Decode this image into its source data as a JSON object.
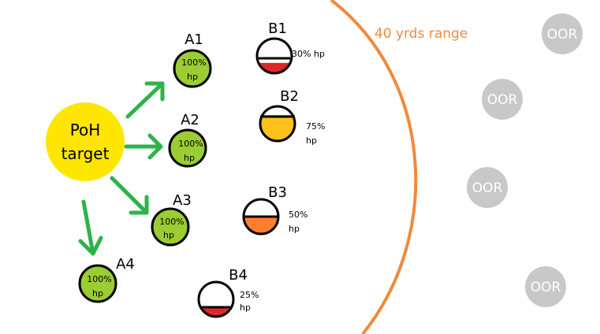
{
  "colors": {
    "green_fill": "#9acd32",
    "arrow": "#2db34a",
    "target": "#ffe600",
    "range": "#f08a3c",
    "oor": "#c8c8c8",
    "red": "#e0262a",
    "yellow": "#ffc21a",
    "orange": "#ff7f2a"
  },
  "target": {
    "line1": "PoH",
    "line2": "target"
  },
  "range_label": "40 yrds range",
  "group_a": [
    {
      "name": "A1",
      "hp_pct": "100%",
      "hp": "hp",
      "health": 100
    },
    {
      "name": "A2",
      "hp_pct": "100%",
      "hp": "hp",
      "health": 100
    },
    {
      "name": "A3",
      "hp_pct": "100%",
      "hp": "hp",
      "health": 100
    },
    {
      "name": "A4",
      "hp_pct": "100%",
      "hp": "hp",
      "health": 100
    }
  ],
  "group_b": [
    {
      "name": "B1",
      "hp_text": "30% hp",
      "health": 30
    },
    {
      "name": "B2",
      "hp_pct": "75%",
      "hp": "hp",
      "health": 75
    },
    {
      "name": "B3",
      "hp_pct": "50%",
      "hp": "hp",
      "health": 50
    },
    {
      "name": "B4",
      "hp_pct": "25%",
      "hp": "hp",
      "health": 25
    }
  ],
  "oor": [
    {
      "label": "OOR"
    },
    {
      "label": "OOR"
    },
    {
      "label": "OOR"
    },
    {
      "label": "OOR"
    }
  ]
}
